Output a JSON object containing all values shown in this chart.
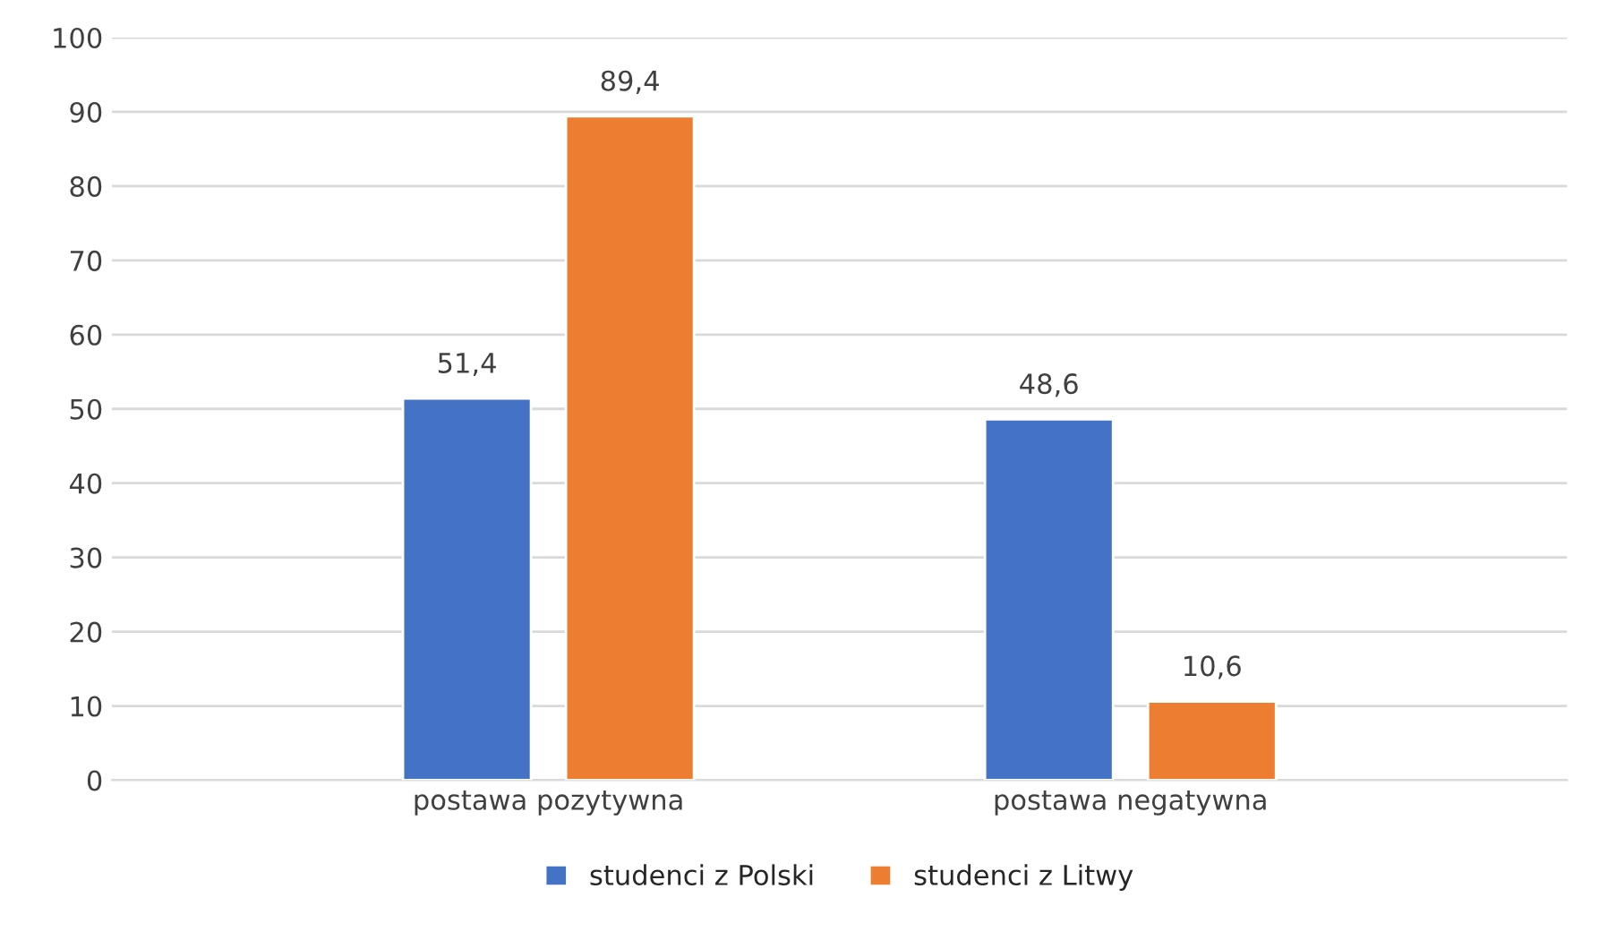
{
  "chart_data": {
    "type": "bar",
    "categories": [
      "postawa pozytywna",
      "postawa negatywna"
    ],
    "series": [
      {
        "name": "studenci z Polski",
        "color": "#4472c4",
        "values": [
          51.4,
          48.6
        ],
        "value_labels": [
          "51,4",
          "48,6"
        ]
      },
      {
        "name": "studenci z Litwy",
        "color": "#ed7d31",
        "values": [
          89.4,
          10.6
        ],
        "value_labels": [
          "89,4",
          "10,6"
        ]
      }
    ],
    "ylim": [
      0,
      100
    ],
    "yticks": [
      0,
      10,
      20,
      30,
      40,
      50,
      60,
      70,
      80,
      90,
      100
    ],
    "grid": "y",
    "legend": "bottom"
  }
}
